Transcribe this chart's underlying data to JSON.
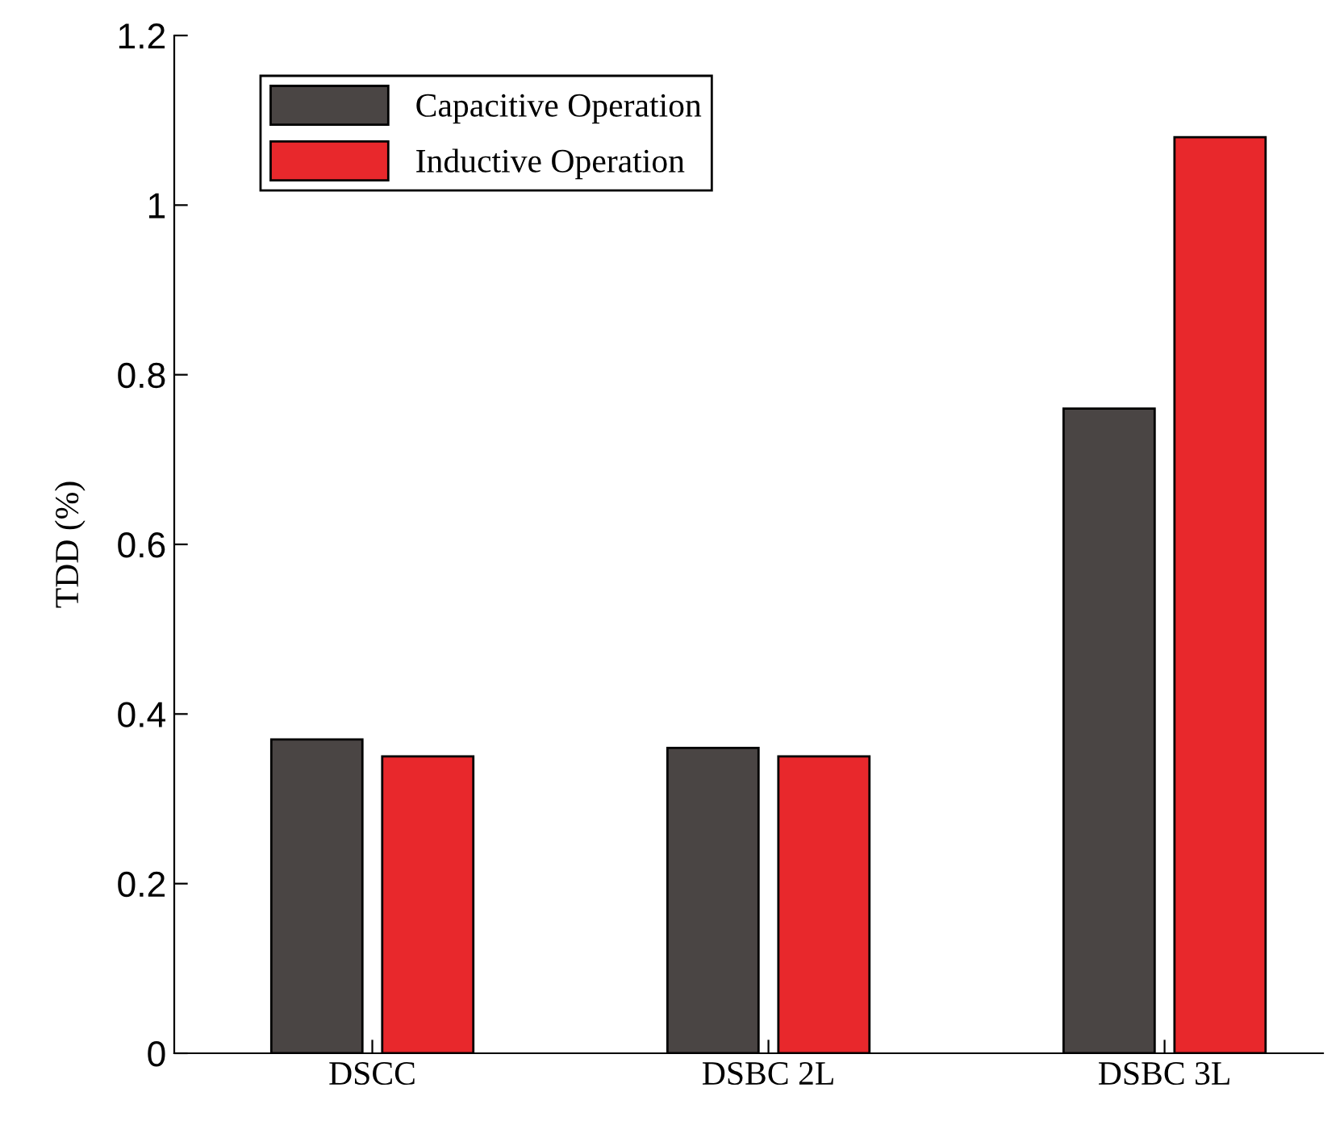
{
  "chart_data": {
    "type": "bar",
    "ylabel": "TDD (%)",
    "categories": [
      "DSCC",
      "DSBC 2L",
      "DSBC 3L"
    ],
    "series": [
      {
        "name": "Capacitive Operation",
        "color": "#4a4544",
        "values": [
          0.37,
          0.36,
          0.76
        ]
      },
      {
        "name": "Inductive Operation",
        "color": "#e8282c",
        "values": [
          0.35,
          0.35,
          1.08
        ]
      }
    ],
    "ylim": [
      0,
      1.2
    ],
    "yticks": [
      0,
      0.2,
      0.4,
      0.6,
      0.8,
      1,
      1.2
    ],
    "legend": "top left",
    "grid": false
  }
}
